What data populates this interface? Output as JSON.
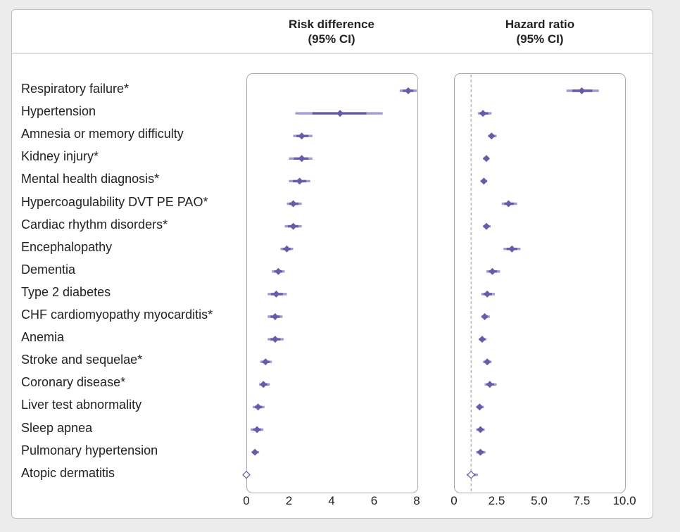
{
  "colors": {
    "accent": "#6a5aa8",
    "ci_light": "#a49ad0",
    "refline": "#9a9a9a"
  },
  "headers": {
    "risk_difference": {
      "line1": "Risk difference",
      "line2": "(95% CI)"
    },
    "hazard_ratio": {
      "line1": "Hazard ratio",
      "line2": "(95% CI)"
    }
  },
  "chart_data": [
    {
      "type": "forest",
      "title": "Risk difference (95% CI)",
      "xlim": [
        0,
        8
      ],
      "ticks": [
        "0",
        "2",
        "4",
        "6",
        "8"
      ],
      "tick_values": [
        0,
        2,
        4,
        6,
        8
      ],
      "rows": [
        {
          "label": "Respiratory failure*",
          "est": 7.6,
          "lo": 7.2,
          "hi": 8.0
        },
        {
          "label": "Hypertension",
          "est": 4.4,
          "lo": 2.3,
          "hi": 6.4
        },
        {
          "label": "Amnesia or memory difficulty",
          "est": 2.6,
          "lo": 2.2,
          "hi": 3.1
        },
        {
          "label": "Kidney injury*",
          "est": 2.6,
          "lo": 2.0,
          "hi": 3.1
        },
        {
          "label": "Mental health diagnosis*",
          "est": 2.5,
          "lo": 2.0,
          "hi": 3.0
        },
        {
          "label": "Hypercoagulability DVT PE PAO*",
          "est": 2.2,
          "lo": 1.9,
          "hi": 2.6
        },
        {
          "label": "Cardiac rhythm disorders*",
          "est": 2.2,
          "lo": 1.8,
          "hi": 2.6
        },
        {
          "label": "Encephalopathy",
          "est": 1.9,
          "lo": 1.6,
          "hi": 2.2
        },
        {
          "label": "Dementia",
          "est": 1.5,
          "lo": 1.2,
          "hi": 1.8
        },
        {
          "label": "Type 2 diabetes",
          "est": 1.4,
          "lo": 1.0,
          "hi": 1.9
        },
        {
          "label": "CHF cardiomyopathy myocarditis*",
          "est": 1.35,
          "lo": 1.0,
          "hi": 1.7
        },
        {
          "label": "Anemia",
          "est": 1.35,
          "lo": 1.0,
          "hi": 1.75
        },
        {
          "label": "Stroke and sequelae*",
          "est": 0.9,
          "lo": 0.65,
          "hi": 1.2
        },
        {
          "label": "Coronary disease*",
          "est": 0.8,
          "lo": 0.6,
          "hi": 1.1
        },
        {
          "label": "Liver test abnormality",
          "est": 0.55,
          "lo": 0.3,
          "hi": 0.85
        },
        {
          "label": "Sleep apnea",
          "est": 0.5,
          "lo": 0.2,
          "hi": 0.8
        },
        {
          "label": "Pulmonary hypertension",
          "est": 0.4,
          "lo": 0.25,
          "hi": 0.6
        },
        {
          "label": "Atopic dermatitis",
          "est": 0.0,
          "lo": 0.0,
          "hi": 0.0,
          "open": true
        }
      ]
    },
    {
      "type": "forest",
      "title": "Hazard ratio (95% CI)",
      "xlim": [
        0,
        10
      ],
      "ticks": [
        "0",
        "2.5",
        "5.0",
        "7.5",
        "10.0"
      ],
      "tick_values": [
        0,
        2.5,
        5.0,
        7.5,
        10.0
      ],
      "reference_line": 1.0,
      "rows": [
        {
          "label": "Respiratory failure*",
          "est": 7.5,
          "lo": 6.6,
          "hi": 8.5
        },
        {
          "label": "Hypertension",
          "est": 1.7,
          "lo": 1.4,
          "hi": 2.2
        },
        {
          "label": "Amnesia or memory difficulty",
          "est": 2.2,
          "lo": 2.0,
          "hi": 2.5
        },
        {
          "label": "Kidney injury*",
          "est": 1.9,
          "lo": 1.7,
          "hi": 2.05
        },
        {
          "label": "Mental health diagnosis*",
          "est": 1.75,
          "lo": 1.55,
          "hi": 1.95
        },
        {
          "label": "Hypercoagulability DVT PE PAO*",
          "est": 3.2,
          "lo": 2.8,
          "hi": 3.7
        },
        {
          "label": "Cardiac rhythm disorders*",
          "est": 1.9,
          "lo": 1.7,
          "hi": 2.15
        },
        {
          "label": "Encephalopathy",
          "est": 3.4,
          "lo": 2.9,
          "hi": 3.9
        },
        {
          "label": "Dementia",
          "est": 2.25,
          "lo": 1.9,
          "hi": 2.7
        },
        {
          "label": "Type 2 diabetes",
          "est": 1.95,
          "lo": 1.6,
          "hi": 2.4
        },
        {
          "label": "CHF cardiomyopathy myocarditis*",
          "est": 1.8,
          "lo": 1.6,
          "hi": 2.1
        },
        {
          "label": "Anemia",
          "est": 1.65,
          "lo": 1.45,
          "hi": 1.9
        },
        {
          "label": "Stroke and sequelae*",
          "est": 1.95,
          "lo": 1.7,
          "hi": 2.2
        },
        {
          "label": "Coronary disease*",
          "est": 2.1,
          "lo": 1.8,
          "hi": 2.5
        },
        {
          "label": "Liver test abnormality",
          "est": 1.5,
          "lo": 1.3,
          "hi": 1.75
        },
        {
          "label": "Sleep apnea",
          "est": 1.55,
          "lo": 1.3,
          "hi": 1.8
        },
        {
          "label": "Pulmonary hypertension",
          "est": 1.55,
          "lo": 1.3,
          "hi": 1.85
        },
        {
          "label": "Atopic dermatitis",
          "est": 1.0,
          "lo": 0.75,
          "hi": 1.4,
          "open": true
        }
      ]
    }
  ]
}
